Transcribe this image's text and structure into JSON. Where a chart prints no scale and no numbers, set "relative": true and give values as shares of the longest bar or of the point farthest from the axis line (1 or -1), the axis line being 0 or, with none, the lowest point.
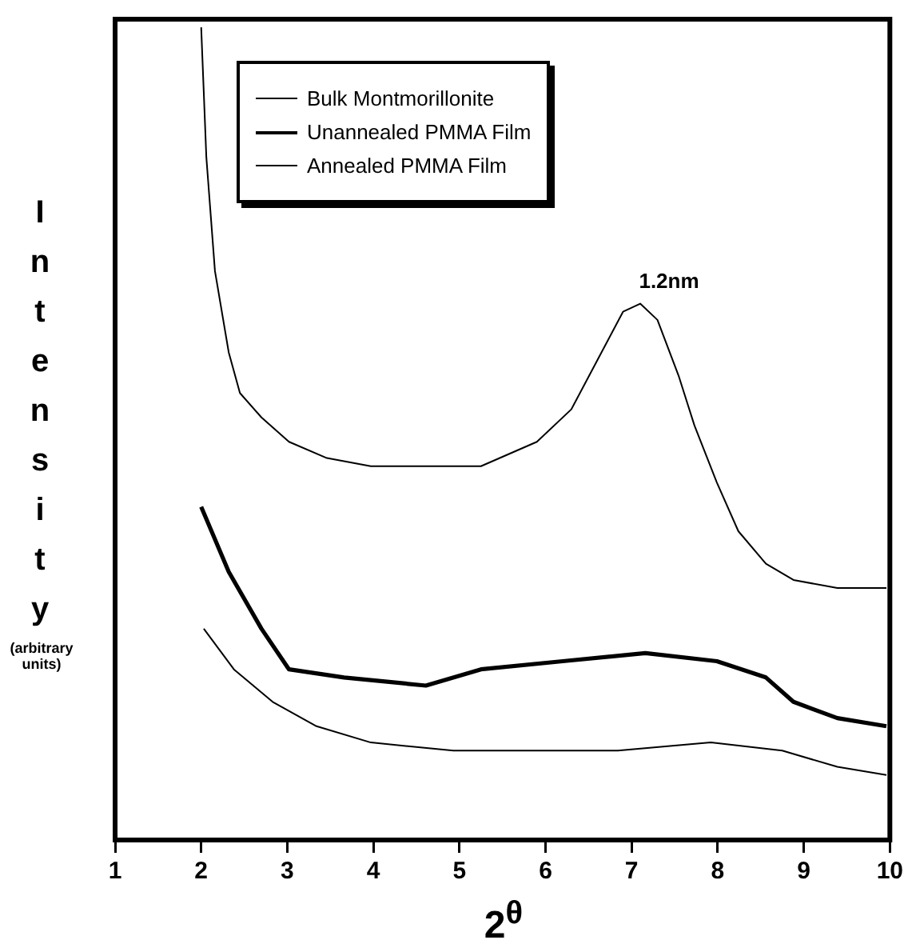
{
  "chart_data": {
    "type": "line",
    "relative": true,
    "xlabel": "2$^{θ}$",
    "ylabel": "Intensity",
    "legend": "top left",
    "marker": "none",
    "grid": false,
    "xlim": [
      1,
      10
    ],
    "xticks": [
      1,
      2,
      3,
      4,
      5,
      6,
      7,
      8,
      9,
      10
    ],
    "annotations": [
      "(arbitrary units)",
      {
        "text": "1.2nm",
        "x": 7.1,
        "y": 0.66
      }
    ],
    "series": [
      {
        "name": "Bulk Montmorillonite",
        "color": "#000000",
        "x": [
          2.0,
          2.06,
          2.16,
          2.32,
          2.45,
          2.7,
          3.02,
          3.46,
          3.97,
          4.6,
          5.25,
          5.9,
          6.3,
          6.65,
          6.9,
          7.1,
          7.3,
          7.55,
          7.73,
          7.99,
          8.24,
          8.56,
          8.88,
          9.39,
          9.96
        ],
        "values": [
          1.0,
          0.84,
          0.7,
          0.6,
          0.55,
          0.52,
          0.49,
          0.47,
          0.46,
          0.46,
          0.46,
          0.49,
          0.53,
          0.6,
          0.65,
          0.66,
          0.64,
          0.57,
          0.51,
          0.44,
          0.38,
          0.34,
          0.32,
          0.31,
          0.31
        ]
      },
      {
        "name": "Unannealed PMMA Film",
        "color": "#000000",
        "x": [
          2.0,
          2.32,
          2.7,
          3.02,
          3.66,
          4.61,
          5.25,
          6.2,
          7.16,
          7.99,
          8.56,
          8.88,
          9.39,
          9.96
        ],
        "values": [
          0.41,
          0.33,
          0.26,
          0.21,
          0.2,
          0.19,
          0.21,
          0.22,
          0.23,
          0.22,
          0.2,
          0.17,
          0.15,
          0.14
        ]
      },
      {
        "name": "Annealed PMMA Film",
        "color": "#000000",
        "x": [
          2.03,
          2.38,
          2.83,
          3.34,
          3.97,
          4.93,
          5.89,
          6.84,
          7.92,
          8.75,
          9.39,
          9.96
        ],
        "values": [
          0.26,
          0.21,
          0.17,
          0.14,
          0.12,
          0.11,
          0.11,
          0.11,
          0.12,
          0.11,
          0.09,
          0.08
        ]
      }
    ]
  }
}
